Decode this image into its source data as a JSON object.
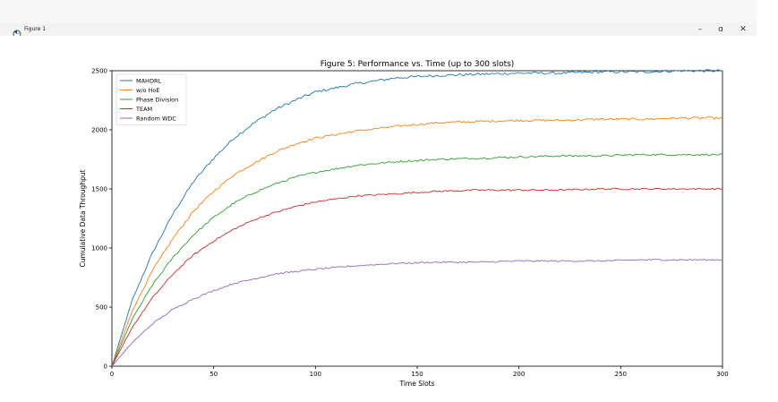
{
  "window": {
    "title": "Figure 1",
    "minimize_glyph": "–",
    "restore_glyph": "ɑ",
    "close_glyph": "✕",
    "app_icon": "matplotlib-figure-icon"
  },
  "chart_data": {
    "type": "line",
    "title": "Figure 5: Performance vs. Time (up to 300 slots)",
    "xlabel": "Time Slots",
    "ylabel": "Cumulative Data Throughput",
    "xlim": [
      0,
      300
    ],
    "ylim": [
      0,
      2500
    ],
    "xticks": [
      0,
      50,
      100,
      150,
      200,
      250,
      300
    ],
    "yticks": [
      0,
      500,
      1000,
      1500,
      2000,
      2500
    ],
    "grid": false,
    "legend_position": "upper-left",
    "x": [
      0,
      10,
      20,
      30,
      40,
      50,
      60,
      70,
      80,
      90,
      100,
      120,
      140,
      160,
      180,
      200,
      220,
      240,
      260,
      280,
      300
    ],
    "series": [
      {
        "name": "MAHDRL",
        "color": "#1f77b4",
        "values": [
          0,
          560,
          960,
          1290,
          1560,
          1760,
          1930,
          2060,
          2170,
          2250,
          2320,
          2390,
          2440,
          2460,
          2470,
          2480,
          2480,
          2490,
          2490,
          2500,
          2500
        ]
      },
      {
        "name": "w/o HoE",
        "color": "#ff7f0e",
        "values": [
          0,
          470,
          810,
          1080,
          1310,
          1480,
          1620,
          1720,
          1810,
          1880,
          1930,
          1990,
          2030,
          2060,
          2070,
          2080,
          2080,
          2090,
          2090,
          2100,
          2100
        ]
      },
      {
        "name": "Phase Division",
        "color": "#2ca02c",
        "values": [
          0,
          400,
          690,
          920,
          1110,
          1260,
          1380,
          1470,
          1540,
          1600,
          1640,
          1700,
          1730,
          1750,
          1760,
          1770,
          1780,
          1780,
          1790,
          1790,
          1790
        ]
      },
      {
        "name": "TEAM",
        "color": "#d62728",
        "values": [
          0,
          330,
          580,
          780,
          940,
          1060,
          1160,
          1240,
          1300,
          1350,
          1390,
          1440,
          1460,
          1480,
          1490,
          1490,
          1490,
          1500,
          1500,
          1500,
          1500
        ]
      },
      {
        "name": "Random WDC",
        "color": "#9467bd",
        "values": [
          0,
          200,
          360,
          480,
          570,
          640,
          700,
          740,
          780,
          800,
          820,
          850,
          870,
          880,
          880,
          890,
          890,
          890,
          900,
          900,
          900
        ]
      }
    ]
  }
}
